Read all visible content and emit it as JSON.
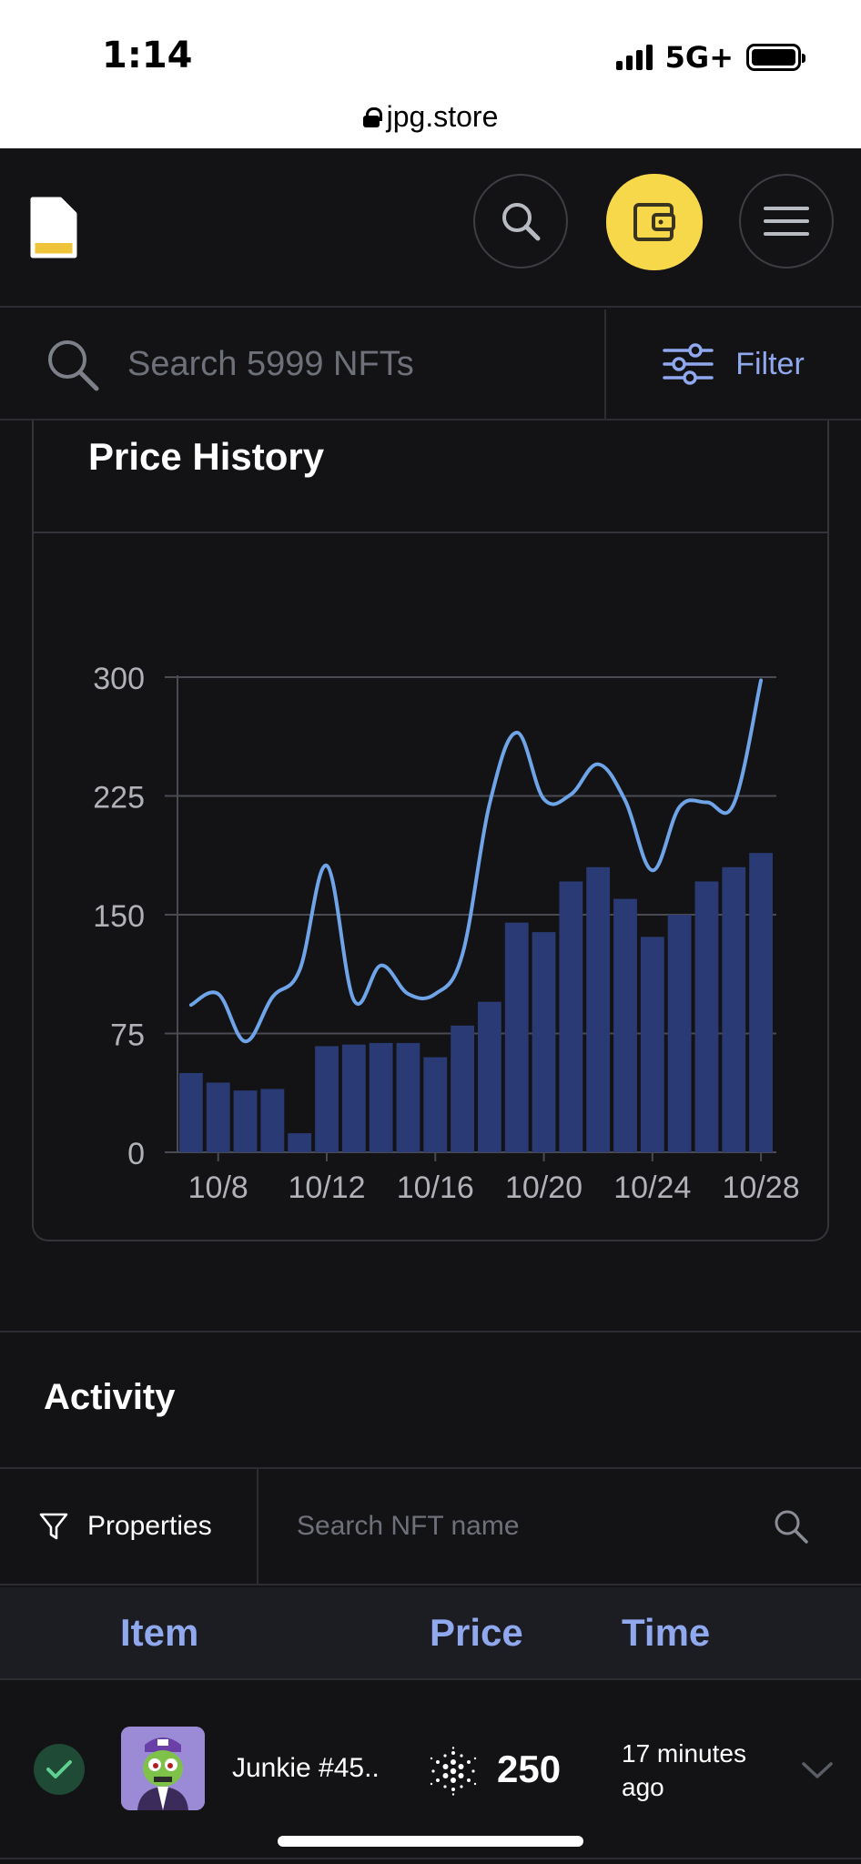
{
  "status_bar": {
    "time": "1:14",
    "network": "5G+",
    "url": "jpg.store"
  },
  "search": {
    "placeholder": "Search 5999 NFTs",
    "filter_label": "Filter"
  },
  "price_history": {
    "title": "Price History"
  },
  "chart_data": {
    "type": "bar",
    "title": "",
    "ylim": [
      0,
      300
    ],
    "y_ticks": [
      0,
      75,
      150,
      225,
      300
    ],
    "x_tick_labels": [
      "10/8",
      "10/12",
      "10/16",
      "10/20",
      "10/24",
      "10/28"
    ],
    "categories": [
      "10/7",
      "10/8",
      "10/9",
      "10/10",
      "10/11",
      "10/12",
      "10/13",
      "10/14",
      "10/15",
      "10/16",
      "10/17",
      "10/18",
      "10/19",
      "10/20",
      "10/21",
      "10/22",
      "10/23",
      "10/24",
      "10/25",
      "10/26",
      "10/27",
      "10/28"
    ],
    "series": [
      {
        "type": "bar",
        "values": [
          50,
          44,
          39,
          40,
          12,
          67,
          68,
          69,
          69,
          60,
          80,
          95,
          145,
          139,
          171,
          180,
          160,
          136,
          150,
          171,
          180,
          189
        ]
      },
      {
        "type": "line",
        "values": [
          93,
          100,
          70,
          98,
          115,
          181,
          96,
          118,
          100,
          100,
          125,
          220,
          265,
          223,
          226,
          245,
          222,
          178,
          218,
          221,
          220,
          298
        ]
      }
    ],
    "bar_color": "#2a3a75",
    "line_color": "#6fa5e8",
    "grid": true
  },
  "activity": {
    "title": "Activity",
    "properties_label": "Properties",
    "search_placeholder": "Search NFT name",
    "columns": {
      "item": "Item",
      "price": "Price",
      "time": "Time"
    },
    "rows": [
      {
        "name": "Junkie #45..",
        "price": "250",
        "time": "17 minutes ago"
      }
    ]
  },
  "colors": {
    "accent_yellow": "#f7d84b",
    "accent_blue": "#8fa8ee",
    "background": "#131315"
  }
}
